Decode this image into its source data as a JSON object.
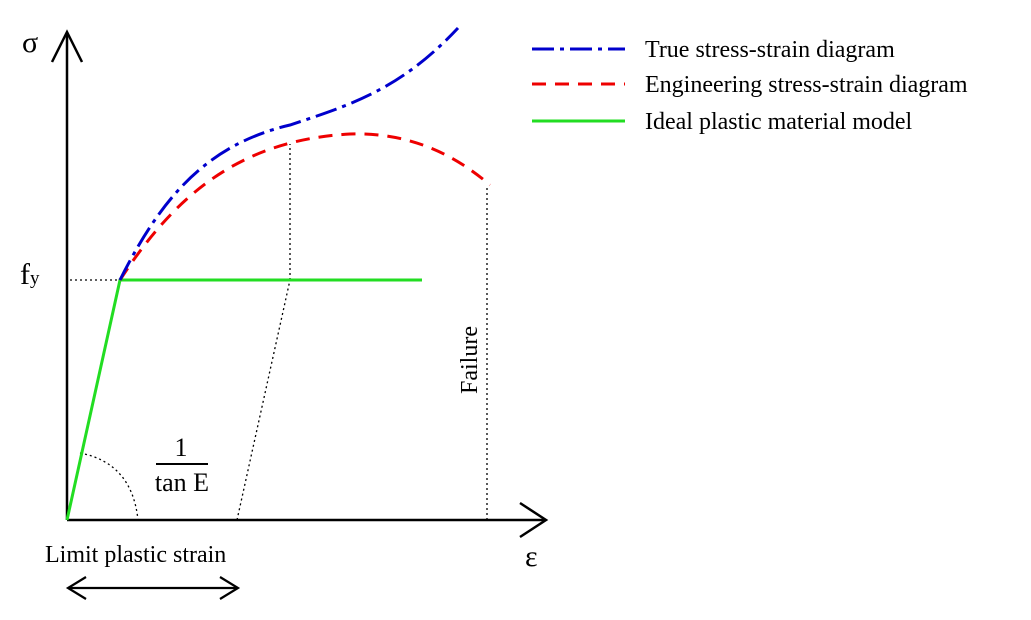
{
  "axes": {
    "y_symbol": "σ",
    "x_symbol": "ε"
  },
  "labels": {
    "yield_main": "f",
    "yield_sub": "y",
    "slope_numerator": "1",
    "slope_denominator": "tan E",
    "failure": "Failure",
    "limit_plastic_strain": "Limit plastic strain"
  },
  "legend": [
    {
      "label": "True stress-strain diagram",
      "color": "#0000cc",
      "style": "dash-dot"
    },
    {
      "label": "Engineering stress-strain diagram",
      "color": "#ee0000",
      "style": "dashed"
    },
    {
      "label": "Ideal plastic material model",
      "color": "#22dd22",
      "style": "solid"
    }
  ]
}
